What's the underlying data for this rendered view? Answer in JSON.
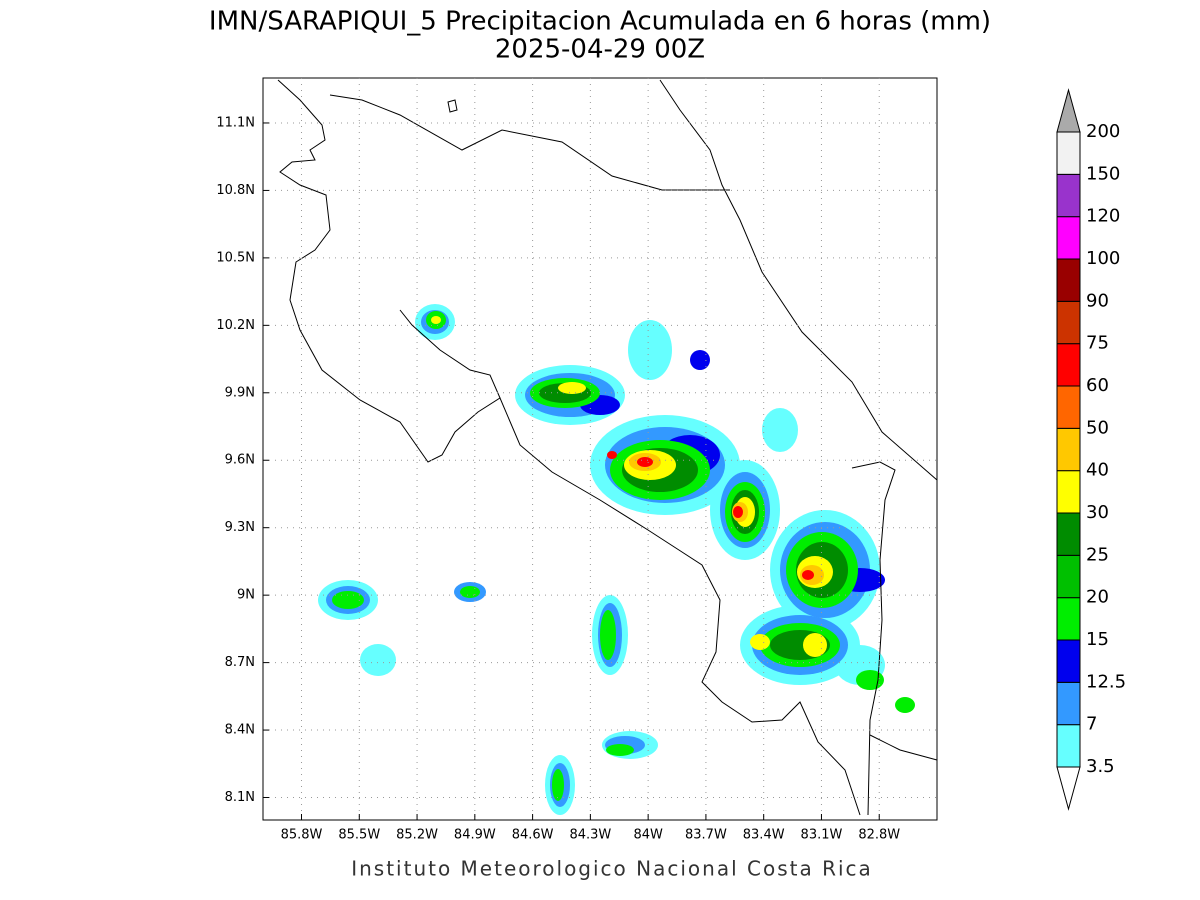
{
  "chart_data": {
    "type": "map",
    "title": "IMN/SARAPIQUI_5 Precipitacion Acumulada en 6 horas (mm)",
    "subtitle": "2025-04-29 00Z",
    "footer": "Instituto Meteorologico Nacional Costa Rica",
    "xlim": [
      -86.0,
      -82.5
    ],
    "ylim": [
      8.0,
      11.3
    ],
    "grid": true,
    "xticks": [
      {
        "value": -85.8,
        "label": "85.8W"
      },
      {
        "value": -85.5,
        "label": "85.5W"
      },
      {
        "value": -85.2,
        "label": "85.2W"
      },
      {
        "value": -84.9,
        "label": "84.9W"
      },
      {
        "value": -84.6,
        "label": "84.6W"
      },
      {
        "value": -84.3,
        "label": "84.3W"
      },
      {
        "value": -84.0,
        "label": "84W"
      },
      {
        "value": -83.7,
        "label": "83.7W"
      },
      {
        "value": -83.4,
        "label": "83.4W"
      },
      {
        "value": -83.1,
        "label": "83.1W"
      },
      {
        "value": -82.8,
        "label": "82.8W"
      }
    ],
    "yticks": [
      {
        "value": 8.1,
        "label": "8.1N"
      },
      {
        "value": 8.4,
        "label": "8.4N"
      },
      {
        "value": 8.7,
        "label": "8.7N"
      },
      {
        "value": 9.0,
        "label": "9N"
      },
      {
        "value": 9.3,
        "label": "9.3N"
      },
      {
        "value": 9.6,
        "label": "9.6N"
      },
      {
        "value": 9.9,
        "label": "9.9N"
      },
      {
        "value": 10.2,
        "label": "10.2N"
      },
      {
        "value": 10.5,
        "label": "10.5N"
      },
      {
        "value": 10.8,
        "label": "10.8N"
      },
      {
        "value": 11.1,
        "label": "11.1N"
      }
    ],
    "colorbar": {
      "levels": [
        3.5,
        7,
        12.5,
        15,
        20,
        25,
        30,
        40,
        50,
        60,
        75,
        90,
        100,
        120,
        150,
        200
      ],
      "colors": [
        "#ffffff",
        "#66ffff",
        "#3399ff",
        "#0000ee",
        "#00ee00",
        "#00c000",
        "#008c00",
        "#ffff00",
        "#ffc800",
        "#ff6600",
        "#ff0000",
        "#cc3300",
        "#990000",
        "#ff00ff",
        "#9933cc",
        "#f2f2f2",
        "#aaaaaa"
      ]
    }
  }
}
